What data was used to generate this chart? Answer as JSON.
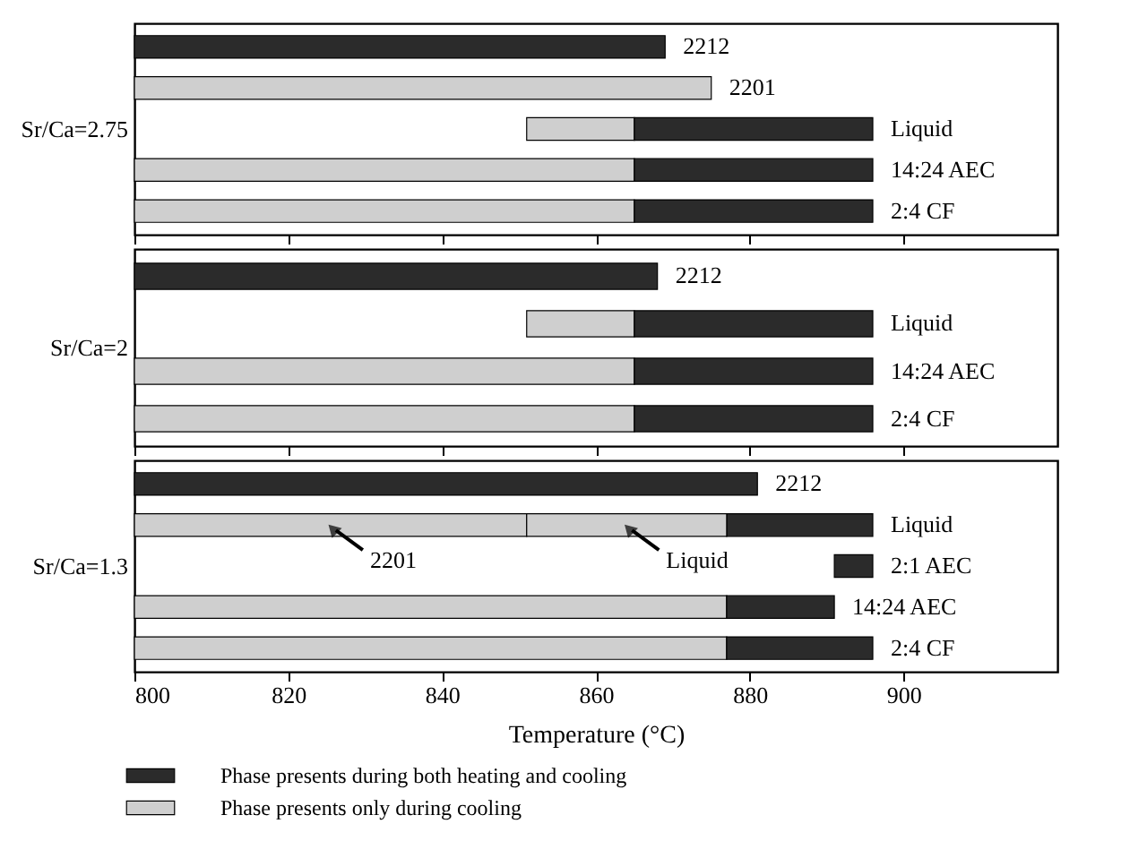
{
  "chart_data": [
    {
      "type": "bar",
      "orientation": "horizontal",
      "ylabel": "Sr/Ca=2.75",
      "categories": [
        "2212",
        "2201",
        "Liquid",
        "14:24 AEC",
        "2:4 CF"
      ],
      "series": [
        {
          "color": "#cfcfcf",
          "base": [
            null,
            800,
            851,
            800,
            800
          ],
          "values": [
            null,
            75,
            14,
            65,
            65
          ]
        },
        {
          "color": "#2b2b2b",
          "base": [
            800,
            null,
            865,
            865,
            865
          ],
          "values": [
            69,
            null,
            31,
            31,
            31
          ]
        }
      ],
      "xlim": [
        800,
        920
      ],
      "xticks": [
        800,
        820,
        840,
        860,
        880,
        900
      ],
      "tick_labels": false
    },
    {
      "type": "bar",
      "orientation": "horizontal",
      "ylabel": "Sr/Ca=2",
      "categories": [
        "2212",
        "Liquid",
        "14:24 AEC",
        "2:4 CF"
      ],
      "series": [
        {
          "color": "#cfcfcf",
          "base": [
            null,
            851,
            800,
            800
          ],
          "values": [
            null,
            14,
            65,
            65
          ]
        },
        {
          "color": "#2b2b2b",
          "base": [
            800,
            865,
            865,
            865
          ],
          "values": [
            68,
            31,
            31,
            31
          ]
        }
      ],
      "xlim": [
        800,
        920
      ],
      "xticks": [
        800,
        820,
        840,
        860,
        880,
        900
      ],
      "tick_labels": false
    },
    {
      "type": "bar",
      "orientation": "horizontal",
      "ylabel": "Sr/Ca=1.3",
      "xlabel": "Temperature (°C)",
      "categories": [
        "2212",
        "Liquid",
        "2:1 AEC",
        "14:24 AEC",
        "2:4 CF"
      ],
      "series": [
        {
          "name": "Phase presents only during cooling",
          "color": "#cfcfcf",
          "base": [
            null,
            800,
            null,
            800,
            800
          ],
          "values": [
            null,
            51,
            null,
            77,
            77
          ]
        },
        {
          "color": "#cfcfcf",
          "base": [
            null,
            851,
            null,
            null,
            null
          ],
          "values": [
            null,
            26,
            null,
            null,
            null
          ]
        },
        {
          "name": "Phase presents during both heating and cooling",
          "color": "#2b2b2b",
          "base": [
            800,
            877,
            891,
            877,
            877
          ],
          "values": [
            81,
            19,
            5,
            14,
            19
          ]
        }
      ],
      "xlim": [
        800,
        920
      ],
      "xticks": [
        800,
        820,
        840,
        860,
        880,
        900
      ],
      "tick_labels": "x",
      "legend": "bottom",
      "annotations": [
        "2201",
        "Liquid"
      ]
    }
  ]
}
